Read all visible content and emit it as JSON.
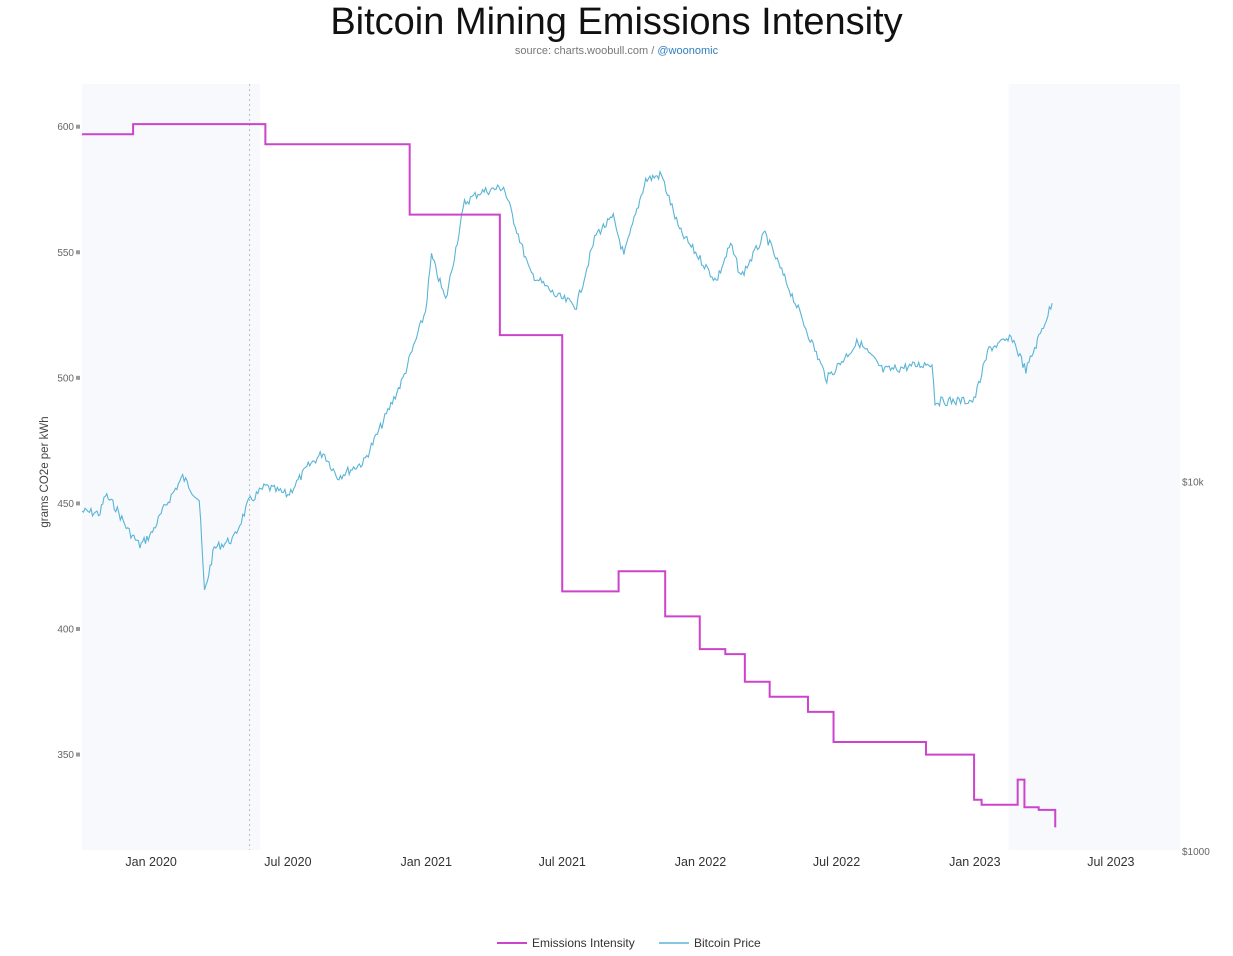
{
  "chart_data": {
    "type": "line",
    "title": "Bitcoin Mining Emissions Intensity",
    "subtitle_prefix": "source: charts.woobull.com /",
    "subtitle_handle": "@woonomic",
    "ylabel": "grams CO2e per kWh",
    "ylim": [
      312,
      617
    ],
    "yticks": [
      350,
      400,
      450,
      500,
      550,
      600
    ],
    "y2ticks": [
      "$10k",
      "$1000"
    ],
    "xlim": [
      "2019-10-01",
      "2023-10-01"
    ],
    "xticks": [
      {
        "date": "2020-01-01",
        "label": "Jan 2020"
      },
      {
        "date": "2020-07-01",
        "label": "Jul 2020"
      },
      {
        "date": "2021-01-01",
        "label": "Jan 2021"
      },
      {
        "date": "2021-07-01",
        "label": "Jul 2021"
      },
      {
        "date": "2022-01-01",
        "label": "Jan 2022"
      },
      {
        "date": "2022-07-01",
        "label": "Jul 2022"
      },
      {
        "date": "2023-01-01",
        "label": "Jan 2023"
      },
      {
        "date": "2023-07-01",
        "label": "Jul 2023"
      }
    ],
    "shaded_regions": [
      {
        "from": "2019-10-01",
        "to": "2020-05-25"
      },
      {
        "from": "2023-02-15",
        "to": "2023-10-01"
      }
    ],
    "vertical_marker": "2020-05-11",
    "series": [
      {
        "name": "Emissions Intensity",
        "color": "#cc44cc",
        "step": true,
        "points": [
          [
            "2019-10-01",
            597
          ],
          [
            "2019-12-08",
            601
          ],
          [
            "2020-06-01",
            593
          ],
          [
            "2020-12-10",
            565
          ],
          [
            "2021-04-09",
            517
          ],
          [
            "2021-07-01",
            415
          ],
          [
            "2021-09-14",
            423
          ],
          [
            "2021-11-15",
            405
          ],
          [
            "2021-12-31",
            392
          ],
          [
            "2022-02-03",
            390
          ],
          [
            "2022-03-01",
            379
          ],
          [
            "2022-04-03",
            373
          ],
          [
            "2022-05-24",
            367
          ],
          [
            "2022-06-27",
            355
          ],
          [
            "2022-10-28",
            350
          ],
          [
            "2022-12-31",
            332
          ],
          [
            "2023-01-10",
            330
          ],
          [
            "2023-02-27",
            340
          ],
          [
            "2023-03-08",
            329
          ],
          [
            "2023-03-27",
            328
          ],
          [
            "2023-04-18",
            321
          ]
        ]
      },
      {
        "name": "Bitcoin Price",
        "color": "#5ab4d6",
        "scale": "log",
        "price_range_usd": [
          1000,
          120000
        ],
        "points": [
          [
            "2019-10-01",
            8300
          ],
          [
            "2019-10-25",
            8200
          ],
          [
            "2019-11-01",
            9200
          ],
          [
            "2019-11-15",
            8500
          ],
          [
            "2019-12-01",
            7400
          ],
          [
            "2019-12-17",
            6700
          ],
          [
            "2020-01-01",
            7200
          ],
          [
            "2020-01-20",
            8600
          ],
          [
            "2020-02-12",
            10300
          ],
          [
            "2020-03-05",
            8900
          ],
          [
            "2020-03-12",
            5000
          ],
          [
            "2020-03-25",
            6600
          ],
          [
            "2020-04-20",
            7000
          ],
          [
            "2020-05-10",
            8800
          ],
          [
            "2020-06-01",
            9700
          ],
          [
            "2020-07-01",
            9200
          ],
          [
            "2020-07-28",
            11000
          ],
          [
            "2020-08-17",
            12000
          ],
          [
            "2020-09-05",
            10300
          ],
          [
            "2020-10-10",
            11300
          ],
          [
            "2020-11-01",
            14000
          ],
          [
            "2020-12-01",
            19000
          ],
          [
            "2020-12-31",
            29000
          ],
          [
            "2021-01-08",
            41000
          ],
          [
            "2021-01-27",
            31000
          ],
          [
            "2021-02-21",
            57000
          ],
          [
            "2021-03-13",
            61000
          ],
          [
            "2021-04-14",
            63000
          ],
          [
            "2021-05-19",
            37000
          ],
          [
            "2021-06-22",
            32000
          ],
          [
            "2021-07-20",
            30000
          ],
          [
            "2021-08-15",
            47000
          ],
          [
            "2021-09-07",
            52000
          ],
          [
            "2021-09-21",
            41000
          ],
          [
            "2021-10-20",
            66000
          ],
          [
            "2021-11-10",
            68000
          ],
          [
            "2021-12-04",
            48000
          ],
          [
            "2022-01-22",
            35000
          ],
          [
            "2022-02-10",
            44000
          ],
          [
            "2022-02-24",
            36000
          ],
          [
            "2022-03-28",
            47000
          ],
          [
            "2022-05-09",
            30000
          ],
          [
            "2022-06-18",
            19000
          ],
          [
            "2022-07-30",
            24000
          ],
          [
            "2022-09-01",
            20000
          ],
          [
            "2022-11-05",
            21000
          ],
          [
            "2022-11-09",
            16500
          ],
          [
            "2022-12-31",
            16600
          ],
          [
            "2023-01-20",
            23000
          ],
          [
            "2023-02-20",
            24500
          ],
          [
            "2023-03-10",
            20000
          ],
          [
            "2023-04-14",
            30500
          ]
        ]
      }
    ]
  }
}
